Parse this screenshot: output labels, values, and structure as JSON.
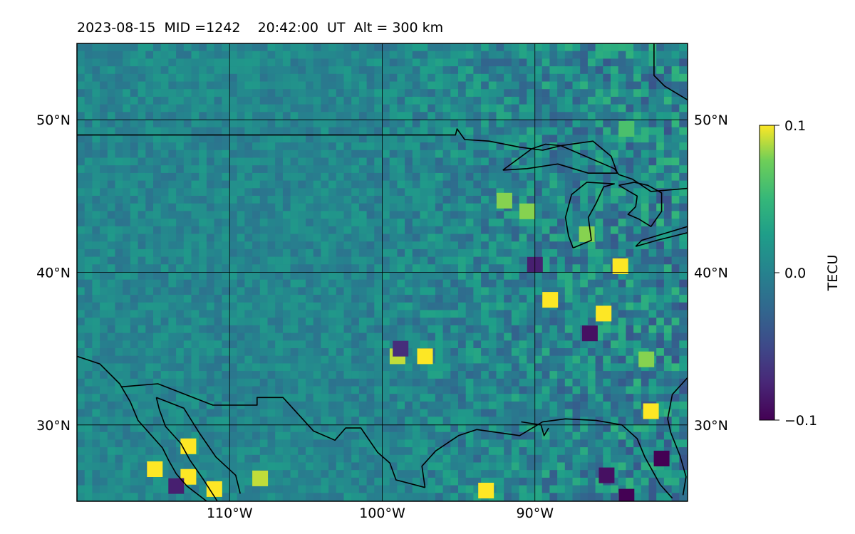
{
  "header": {
    "title": "2023-08-15  MID =1242    20:42:00  UT  Alt = 300 km",
    "date": "2023-08-15",
    "mid": "1242",
    "time_ut": "20:42:00",
    "altitude": "300 km"
  },
  "chart_data": {
    "type": "heatmap",
    "xlim": [
      -120,
      -80
    ],
    "ylim": [
      25,
      55
    ],
    "x_ticks": [
      -110,
      -100,
      -90
    ],
    "x_tick_labels": [
      "110°W",
      "100°W",
      "90°W"
    ],
    "y_ticks": [
      30,
      40,
      50
    ],
    "y_tick_labels": [
      "30°N",
      "40°N",
      "50°N"
    ],
    "grid": true,
    "colormap": "viridis",
    "colorbar": {
      "label": "TECU",
      "range": [
        -0.1,
        0.1
      ],
      "ticks": [
        0.1,
        0.0,
        -0.1
      ],
      "tick_labels": [
        "0.1",
        "0.0",
        "−0.1"
      ]
    },
    "field_description_hint": "perturbation TEC, mostly near 0 TECU, with small-scale positive/negative patches strongest east of 100°W",
    "hotspots": [
      {
        "lon": -114.9,
        "lat": 27.1,
        "value": 0.1
      },
      {
        "lon": -112.7,
        "lat": 28.6,
        "value": 0.1
      },
      {
        "lon": -112.7,
        "lat": 26.6,
        "value": 0.1
      },
      {
        "lon": -111.0,
        "lat": 25.8,
        "value": 0.1
      },
      {
        "lon": -113.5,
        "lat": 26.0,
        "value": -0.08
      },
      {
        "lon": -108.0,
        "lat": 26.5,
        "value": 0.09
      },
      {
        "lon": -93.2,
        "lat": 25.7,
        "value": 0.1
      },
      {
        "lon": -99.0,
        "lat": 34.5,
        "value": 0.09
      },
      {
        "lon": -97.2,
        "lat": 34.5,
        "value": 0.1
      },
      {
        "lon": -98.8,
        "lat": 35.0,
        "value": -0.07
      },
      {
        "lon": -89.0,
        "lat": 38.2,
        "value": 0.1
      },
      {
        "lon": -84.4,
        "lat": 40.4,
        "value": 0.1
      },
      {
        "lon": -85.5,
        "lat": 37.3,
        "value": 0.1
      },
      {
        "lon": -82.4,
        "lat": 30.9,
        "value": 0.1
      },
      {
        "lon": -84.0,
        "lat": 49.4,
        "value": 0.06
      },
      {
        "lon": -90.5,
        "lat": 44.0,
        "value": 0.08
      },
      {
        "lon": -92.0,
        "lat": 44.7,
        "value": 0.08
      },
      {
        "lon": -86.6,
        "lat": 42.5,
        "value": 0.08
      },
      {
        "lon": -82.7,
        "lat": 34.3,
        "value": 0.08
      },
      {
        "lon": -86.4,
        "lat": 36.0,
        "value": -0.09
      },
      {
        "lon": -90.0,
        "lat": 40.5,
        "value": -0.08
      },
      {
        "lon": -84.0,
        "lat": 25.3,
        "value": -0.1
      },
      {
        "lon": -81.7,
        "lat": 27.8,
        "value": -0.1
      },
      {
        "lon": -85.3,
        "lat": 26.7,
        "value": -0.09
      }
    ],
    "coastlines": [
      {
        "name": "us-canada-border",
        "lonlat": [
          [
            -120,
            49
          ],
          [
            -95.2,
            49
          ],
          [
            -95.1,
            49.4
          ],
          [
            -94.6,
            48.7
          ],
          [
            -93,
            48.6
          ],
          [
            -91,
            48.2
          ],
          [
            -89.5,
            48
          ],
          [
            -88.3,
            48.3
          ],
          [
            -84.8,
            46.8
          ],
          [
            -84.5,
            46.4
          ],
          [
            -83.6,
            46.1
          ],
          [
            -82.4,
            45.3
          ],
          [
            -80,
            45.5
          ]
        ]
      },
      {
        "name": "lake-superior",
        "lonlat": [
          [
            -92.1,
            46.7
          ],
          [
            -90.5,
            46.8
          ],
          [
            -88.5,
            47.1
          ],
          [
            -86.5,
            46.5
          ],
          [
            -85,
            46.5
          ],
          [
            -84.6,
            46.5
          ],
          [
            -85,
            47.6
          ],
          [
            -86.2,
            48.6
          ],
          [
            -88.3,
            48.3
          ],
          [
            -89.3,
            48.4
          ],
          [
            -90.2,
            48.1
          ],
          [
            -92.1,
            46.7
          ]
        ]
      },
      {
        "name": "lake-michigan",
        "lonlat": [
          [
            -87.5,
            41.6
          ],
          [
            -86.3,
            42.1
          ],
          [
            -86.5,
            43.6
          ],
          [
            -86.0,
            44.5
          ],
          [
            -85.5,
            45.6
          ],
          [
            -84.8,
            45.8
          ],
          [
            -86.6,
            45.9
          ],
          [
            -87.6,
            45.1
          ],
          [
            -88.0,
            43.6
          ],
          [
            -87.8,
            42.4
          ],
          [
            -87.5,
            41.6
          ]
        ]
      },
      {
        "name": "lake-huron",
        "lonlat": [
          [
            -84.5,
            45.7
          ],
          [
            -83.5,
            45.9
          ],
          [
            -82.6,
            45.7
          ],
          [
            -81.7,
            45.2
          ],
          [
            -81.7,
            44.0
          ],
          [
            -82.4,
            43.0
          ],
          [
            -83.2,
            43.5
          ],
          [
            -83.9,
            43.8
          ],
          [
            -83.4,
            44.3
          ],
          [
            -83.3,
            45.0
          ],
          [
            -84.5,
            45.7
          ]
        ]
      },
      {
        "name": "lake-erie-ontario",
        "lonlat": [
          [
            -83.4,
            41.7
          ],
          [
            -82.0,
            42.1
          ],
          [
            -80.0,
            42.6
          ],
          [
            -80,
            43.0
          ],
          [
            -81.0,
            42.7
          ],
          [
            -83.0,
            42.1
          ],
          [
            -83.4,
            41.7
          ]
        ]
      },
      {
        "name": "hudson-bay-shore",
        "lonlat": [
          [
            -94.8,
            59.9
          ],
          [
            -94.6,
            58.5
          ],
          [
            -93,
            57
          ],
          [
            -92,
            56.8
          ],
          [
            -90.8,
            56.3
          ]
        ]
      },
      {
        "name": "james-bay-shore",
        "lonlat": [
          [
            -82.2,
            55.0
          ],
          [
            -82.2,
            52.9
          ],
          [
            -81.5,
            52.2
          ],
          [
            -80,
            51.3
          ]
        ]
      },
      {
        "name": "mexico-us-border",
        "lonlat": [
          [
            -117.1,
            32.5
          ],
          [
            -114.7,
            32.7
          ],
          [
            -111.1,
            31.3
          ],
          [
            -108.2,
            31.3
          ],
          [
            -108.2,
            31.8
          ],
          [
            -106.5,
            31.8
          ],
          [
            -104.5,
            29.6
          ],
          [
            -103.1,
            29.0
          ],
          [
            -102.4,
            29.8
          ],
          [
            -101.4,
            29.8
          ],
          [
            -100.3,
            28.2
          ],
          [
            -99.5,
            27.5
          ],
          [
            -99.1,
            26.4
          ],
          [
            -97.2,
            25.9
          ]
        ]
      },
      {
        "name": "pacific-coast",
        "lonlat": [
          [
            -120,
            34.5
          ],
          [
            -118.5,
            34.0
          ],
          [
            -117.2,
            32.7
          ],
          [
            -116.5,
            31.5
          ],
          [
            -116.0,
            30.3
          ],
          [
            -115.2,
            29.4
          ],
          [
            -114.4,
            28.5
          ],
          [
            -114.0,
            27.7
          ],
          [
            -113.5,
            26.8
          ],
          [
            -112.8,
            26.0
          ],
          [
            -111.5,
            25.0
          ]
        ]
      },
      {
        "name": "baja-gulf-coast",
        "lonlat": [
          [
            -114.8,
            31.8
          ],
          [
            -114.6,
            31.0
          ],
          [
            -114.2,
            29.9
          ],
          [
            -113.2,
            28.8
          ],
          [
            -112.6,
            27.7
          ],
          [
            -111.7,
            26.4
          ],
          [
            -110.8,
            25.0
          ]
        ]
      },
      {
        "name": "sonora-coast",
        "lonlat": [
          [
            -114.8,
            31.8
          ],
          [
            -113.0,
            31.1
          ],
          [
            -112.0,
            29.5
          ],
          [
            -110.9,
            27.9
          ],
          [
            -109.6,
            26.7
          ],
          [
            -109.3,
            25.5
          ]
        ]
      },
      {
        "name": "gulf-coast",
        "lonlat": [
          [
            -97.2,
            25.9
          ],
          [
            -97.4,
            27.3
          ],
          [
            -96.5,
            28.3
          ],
          [
            -95,
            29.3
          ],
          [
            -93.8,
            29.7
          ],
          [
            -91,
            29.3
          ],
          [
            -89.5,
            30.2
          ],
          [
            -88,
            30.4
          ],
          [
            -86,
            30.3
          ],
          [
            -84.3,
            30.0
          ],
          [
            -83.3,
            29.1
          ],
          [
            -82.8,
            27.9
          ],
          [
            -81.8,
            26.1
          ],
          [
            -81.0,
            25.2
          ]
        ]
      },
      {
        "name": "mississippi-delta",
        "lonlat": [
          [
            -90.9,
            30.2
          ],
          [
            -89.6,
            30.0
          ],
          [
            -89.4,
            29.3
          ],
          [
            -89.1,
            29.8
          ]
        ]
      },
      {
        "name": "atlantic-coast",
        "lonlat": [
          [
            -80,
            33.1
          ],
          [
            -81.0,
            32.0
          ],
          [
            -81.3,
            30.4
          ],
          [
            -81.1,
            29.5
          ],
          [
            -80.5,
            28.0
          ],
          [
            -80.1,
            26.6
          ],
          [
            -80.3,
            25.4
          ]
        ]
      }
    ]
  }
}
